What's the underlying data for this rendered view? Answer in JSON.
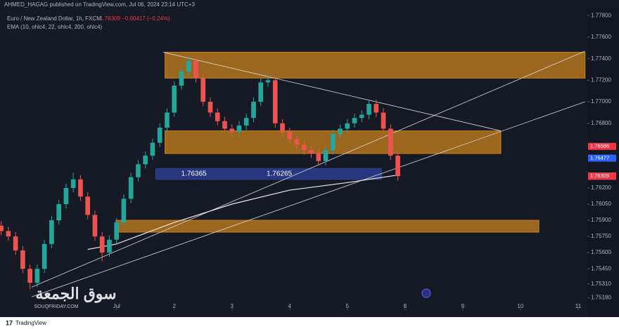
{
  "header": {
    "publisher": "AHMED_HAGAG published on TradingView.com, Jul 06, 2024 23:14 UTC+3",
    "symbol": "Euro / New Zealand Dollar, 1h, FXCM",
    "quote": "1.76309 −0.00417 (−0.24%)",
    "indicator": "EMA (10, ohlc4, 22, ohlc4, 200, ohlc4)",
    "watermark": "سوق الجمعة",
    "watermark_url": "SOUQFRIDAY.COM",
    "footer": "TradingView"
  },
  "chart_data": {
    "type": "candlestick",
    "x": [
      -2,
      -1.875,
      -1.75,
      -1.625,
      -1.5,
      -1.375,
      -1.25,
      -1.125,
      -1,
      -0.875,
      -0.75,
      -0.625,
      -0.5,
      -0.375,
      -0.25,
      -0.125,
      0,
      0.125,
      0.25,
      0.375,
      0.5,
      0.625,
      0.75,
      0.875,
      1,
      1.125,
      1.25,
      1.375,
      1.5,
      1.625,
      1.75,
      1.875,
      2,
      2.125,
      2.25,
      2.375,
      2.5,
      2.625,
      2.75,
      2.875,
      3,
      3.125,
      3.25,
      3.375,
      3.5,
      3.625,
      3.75,
      3.875,
      4,
      4.125,
      4.25,
      4.375,
      4.5,
      4.625,
      4.75,
      4.875
    ],
    "open": [
      1.7585,
      1.758,
      1.7575,
      1.7562,
      1.7545,
      1.7532,
      1.7545,
      1.7568,
      1.759,
      1.7605,
      1.762,
      1.7628,
      1.7612,
      1.7595,
      1.7575,
      1.756,
      1.7572,
      1.7588,
      1.761,
      1.763,
      1.7642,
      1.765,
      1.7662,
      1.7676,
      1.769,
      1.7715,
      1.7728,
      1.7738,
      1.7722,
      1.77,
      1.769,
      1.7682,
      1.7675,
      1.7672,
      1.7678,
      1.7685,
      1.77,
      1.7718,
      1.772,
      1.768,
      1.7672,
      1.7665,
      1.766,
      1.7655,
      1.7652,
      1.7645,
      1.7655,
      1.767,
      1.7675,
      1.768,
      1.7685,
      1.7688,
      1.7698,
      1.769,
      1.7675,
      1.765
    ],
    "high": [
      1.7589,
      1.7584,
      1.7579,
      1.7566,
      1.7549,
      1.7549,
      1.7572,
      1.7594,
      1.7609,
      1.7624,
      1.7634,
      1.7632,
      1.7616,
      1.7599,
      1.7579,
      1.7576,
      1.7592,
      1.7614,
      1.7634,
      1.7646,
      1.7654,
      1.7666,
      1.768,
      1.7694,
      1.7719,
      1.7732,
      1.7742,
      1.7742,
      1.7726,
      1.7704,
      1.7694,
      1.7686,
      1.7679,
      1.7682,
      1.7689,
      1.7704,
      1.7722,
      1.7724,
      1.7724,
      1.7684,
      1.7676,
      1.7669,
      1.7664,
      1.7659,
      1.7656,
      1.7659,
      1.7674,
      1.7679,
      1.7684,
      1.7689,
      1.7692,
      1.7702,
      1.7702,
      1.7694,
      1.7679,
      1.7654
    ],
    "low": [
      1.7576,
      1.7571,
      1.7558,
      1.7541,
      1.7526,
      1.7528,
      1.7541,
      1.7564,
      1.7586,
      1.7601,
      1.7616,
      1.7608,
      1.7591,
      1.7571,
      1.7552,
      1.7556,
      1.7568,
      1.7584,
      1.7606,
      1.7626,
      1.7638,
      1.7646,
      1.7658,
      1.7672,
      1.7686,
      1.7711,
      1.7724,
      1.7718,
      1.7696,
      1.7686,
      1.7678,
      1.7671,
      1.7668,
      1.7668,
      1.7674,
      1.7681,
      1.7696,
      1.7714,
      1.7676,
      1.7668,
      1.7661,
      1.7656,
      1.7651,
      1.7648,
      1.7641,
      1.7641,
      1.7651,
      1.7666,
      1.7671,
      1.7676,
      1.7681,
      1.7684,
      1.7686,
      1.7671,
      1.7646,
      1.7627
    ],
    "close": [
      1.758,
      1.7575,
      1.7562,
      1.7545,
      1.7532,
      1.7545,
      1.7568,
      1.759,
      1.7605,
      1.762,
      1.7628,
      1.7612,
      1.7595,
      1.7575,
      1.756,
      1.7572,
      1.7588,
      1.761,
      1.763,
      1.7642,
      1.765,
      1.7662,
      1.7676,
      1.769,
      1.7715,
      1.7728,
      1.7738,
      1.7722,
      1.77,
      1.769,
      1.7682,
      1.7675,
      1.7672,
      1.7678,
      1.7685,
      1.77,
      1.7718,
      1.772,
      1.768,
      1.7672,
      1.7665,
      1.766,
      1.7655,
      1.7652,
      1.7645,
      1.7655,
      1.767,
      1.7675,
      1.768,
      1.7685,
      1.7688,
      1.7698,
      1.769,
      1.7675,
      1.765,
      1.7631
    ],
    "up_color": "#26a69a",
    "down_color": "#ef5350",
    "ema200": {
      "color": "#e8e8e8",
      "x": [
        -0.5,
        0,
        1,
        2,
        3,
        4,
        4.875
      ],
      "values": [
        1.7563,
        1.7568,
        1.7588,
        1.7605,
        1.7618,
        1.7625,
        1.7632
      ]
    },
    "zones": [
      {
        "x": [
          0.84,
          8.12
        ],
        "y": [
          1.7722,
          1.7746
        ],
        "color": "#c8821e"
      },
      {
        "x": [
          0.84,
          6.66
        ],
        "y": [
          1.7652,
          1.7673
        ],
        "color": "#c8821e"
      },
      {
        "x": [
          -0.01,
          7.32
        ],
        "y": [
          1.7579,
          1.759
        ],
        "color": "#c8821e"
      },
      {
        "x": [
          0.68,
          4.59
        ],
        "y": [
          1.7628,
          1.7638
        ],
        "color": "#2f3f9e"
      }
    ],
    "zone_labels": [
      {
        "text": "1.76365",
        "x": 1.12,
        "y": 1.7633
      },
      {
        "text": "1.76265",
        "x": 2.6,
        "y": 1.7633
      }
    ],
    "trendlines": [
      {
        "x": [
          0.81,
          6.66
        ],
        "y": [
          1.7746,
          1.7673
        ]
      },
      {
        "x": [
          -1.47,
          8.12
        ],
        "y": [
          1.7528,
          1.7747
        ]
      },
      {
        "x": [
          -1.47,
          8.12
        ],
        "y": [
          1.7519,
          1.77
        ]
      }
    ],
    "xlim": [
      -2.02,
      8.16
    ],
    "ylim": [
      1.7508,
      1.7786
    ],
    "xticks": [
      {
        "value": 0,
        "label": "Jul"
      },
      {
        "value": 1,
        "label": "2"
      },
      {
        "value": 2,
        "label": "3"
      },
      {
        "value": 3,
        "label": "4"
      },
      {
        "value": 4,
        "label": "5"
      },
      {
        "value": 5,
        "label": "8"
      },
      {
        "value": 6,
        "label": "9"
      },
      {
        "value": 7,
        "label": "10"
      },
      {
        "value": 8,
        "label": "11"
      }
    ],
    "yticks": [
      {
        "value": 1.778,
        "label": "1.77800"
      },
      {
        "value": 1.776,
        "label": "1.77600"
      },
      {
        "value": 1.774,
        "label": "1.77400"
      },
      {
        "value": 1.772,
        "label": "1.77200"
      },
      {
        "value": 1.77,
        "label": "1.77000"
      },
      {
        "value": 1.768,
        "label": "1.76800"
      },
      {
        "value": 1.762,
        "label": "1.76200"
      },
      {
        "value": 1.7605,
        "label": "1.76050"
      },
      {
        "value": 1.759,
        "label": "1.75900"
      },
      {
        "value": 1.7575,
        "label": "1.75750"
      },
      {
        "value": 1.756,
        "label": "1.75600"
      },
      {
        "value": 1.7545,
        "label": "1.75450"
      },
      {
        "value": 1.7531,
        "label": "1.75310"
      },
      {
        "value": 1.7518,
        "label": "1.75180"
      }
    ],
    "price_badges": [
      {
        "value": 1.76586,
        "label": "1.76586",
        "color": "#f23645"
      },
      {
        "value": 1.76477,
        "label": "1.76477",
        "color": "#2962ff"
      },
      {
        "value": 1.7631,
        "label": "1.76310",
        "color": "#ffffff"
      },
      {
        "value": 1.76309,
        "label": "1.76309",
        "color": "#f23645"
      }
    ],
    "grid": false
  }
}
